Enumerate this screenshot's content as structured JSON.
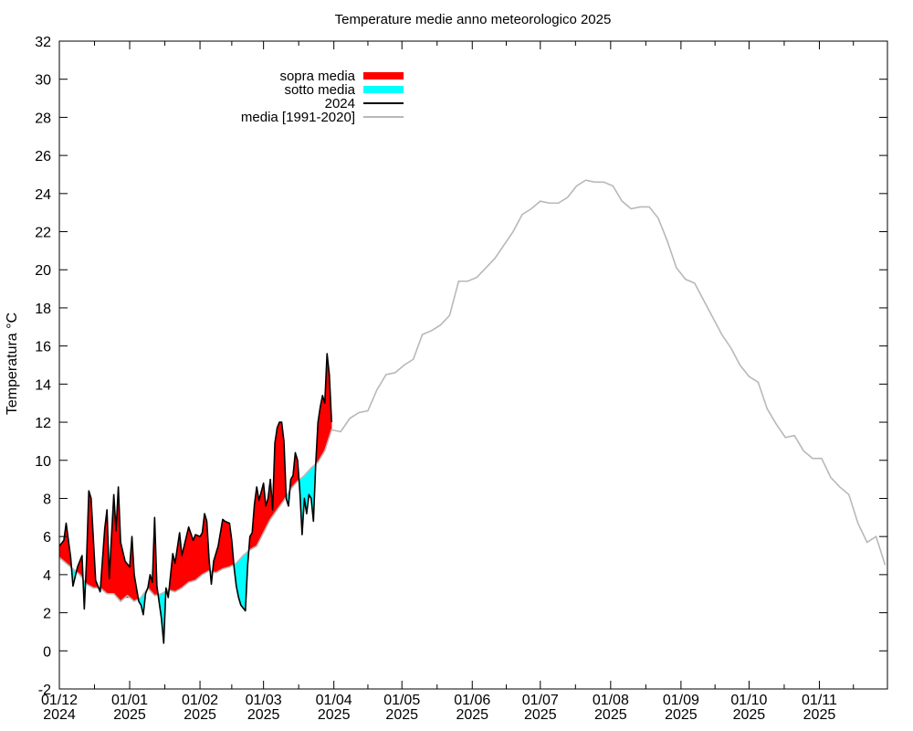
{
  "chart_data": {
    "type": "area",
    "title": "Temperature medie anno meteorologico 2025",
    "ylabel": "Temperatura °C",
    "xlabel": "",
    "ylim": [
      -2,
      32
    ],
    "yticks": [
      -2,
      0,
      2,
      4,
      6,
      8,
      10,
      12,
      14,
      16,
      18,
      20,
      22,
      24,
      26,
      28,
      30,
      32
    ],
    "xlim": [
      "2024-12-01",
      "2025-11-30"
    ],
    "xticks": [
      {
        "date": "2024-12-01",
        "line1": "01/12",
        "line2": "2024"
      },
      {
        "date": "2025-01-01",
        "line1": "01/01",
        "line2": "2025"
      },
      {
        "date": "2025-02-01",
        "line1": "01/02",
        "line2": "2025"
      },
      {
        "date": "2025-03-01",
        "line1": "01/03",
        "line2": "2025"
      },
      {
        "date": "2025-04-01",
        "line1": "01/04",
        "line2": "2025"
      },
      {
        "date": "2025-05-01",
        "line1": "01/05",
        "line2": "2025"
      },
      {
        "date": "2025-06-01",
        "line1": "01/06",
        "line2": "2025"
      },
      {
        "date": "2025-07-01",
        "line1": "01/07",
        "line2": "2025"
      },
      {
        "date": "2025-08-01",
        "line1": "01/08",
        "line2": "2025"
      },
      {
        "date": "2025-09-01",
        "line1": "01/09",
        "line2": "2025"
      },
      {
        "date": "2025-10-01",
        "line1": "01/10",
        "line2": "2025"
      },
      {
        "date": "2025-11-01",
        "line1": "01/11",
        "line2": "2025"
      }
    ],
    "legend_position": "top-left",
    "legend": [
      {
        "label": "sopra media",
        "color": "#ff0000",
        "kind": "fill"
      },
      {
        "label": "sotto media",
        "color": "#00ffff",
        "kind": "fill"
      },
      {
        "label": "2024",
        "color": "#000000",
        "kind": "line"
      },
      {
        "label": "media [1991-2020]",
        "color": "#b8b8b8",
        "kind": "line"
      }
    ],
    "colors": {
      "above": "#ff0000",
      "below": "#00ffff",
      "current": "#000000",
      "normal": "#b8b8b8"
    },
    "series": [
      {
        "name": "media [1991-2020]",
        "points": [
          [
            "2024-12-01",
            4.9
          ],
          [
            "2024-12-04",
            4.6
          ],
          [
            "2024-12-07",
            4.3
          ],
          [
            "2024-12-10",
            4.0
          ],
          [
            "2024-12-13",
            3.5
          ],
          [
            "2024-12-16",
            3.3
          ],
          [
            "2024-12-19",
            3.3
          ],
          [
            "2024-12-22",
            3.0
          ],
          [
            "2024-12-25",
            3.0
          ],
          [
            "2024-12-28",
            2.6
          ],
          [
            "2024-12-31",
            2.9
          ],
          [
            "2025-01-03",
            2.6
          ],
          [
            "2025-01-06",
            2.8
          ],
          [
            "2025-01-09",
            3.3
          ],
          [
            "2025-01-12",
            2.9
          ],
          [
            "2025-01-15",
            3.0
          ],
          [
            "2025-01-18",
            3.2
          ],
          [
            "2025-01-21",
            3.1
          ],
          [
            "2025-01-24",
            3.3
          ],
          [
            "2025-01-27",
            3.6
          ],
          [
            "2025-01-30",
            3.7
          ],
          [
            "2025-02-02",
            4.0
          ],
          [
            "2025-02-05",
            4.2
          ],
          [
            "2025-02-08",
            4.1
          ],
          [
            "2025-02-11",
            4.3
          ],
          [
            "2025-02-14",
            4.4
          ],
          [
            "2025-02-17",
            4.6
          ],
          [
            "2025-02-20",
            5.0
          ],
          [
            "2025-02-23",
            5.3
          ],
          [
            "2025-02-26",
            5.5
          ],
          [
            "2025-03-01",
            6.2
          ],
          [
            "2025-03-04",
            6.9
          ],
          [
            "2025-03-07",
            7.4
          ],
          [
            "2025-03-10",
            7.9
          ],
          [
            "2025-03-13",
            8.5
          ],
          [
            "2025-03-16",
            8.9
          ],
          [
            "2025-03-19",
            9.2
          ],
          [
            "2025-03-22",
            9.6
          ],
          [
            "2025-03-25",
            9.9
          ],
          [
            "2025-03-28",
            10.5
          ],
          [
            "2025-03-31",
            11.6
          ],
          [
            "2025-04-04",
            11.5
          ],
          [
            "2025-04-08",
            12.2
          ],
          [
            "2025-04-12",
            12.5
          ],
          [
            "2025-04-16",
            12.6
          ],
          [
            "2025-04-20",
            13.7
          ],
          [
            "2025-04-24",
            14.5
          ],
          [
            "2025-04-28",
            14.6
          ],
          [
            "2025-05-02",
            15.0
          ],
          [
            "2025-05-06",
            15.3
          ],
          [
            "2025-05-10",
            16.6
          ],
          [
            "2025-05-14",
            16.8
          ],
          [
            "2025-05-18",
            17.1
          ],
          [
            "2025-05-22",
            17.6
          ],
          [
            "2025-05-26",
            19.4
          ],
          [
            "2025-05-30",
            19.4
          ],
          [
            "2025-06-03",
            19.6
          ],
          [
            "2025-06-07",
            20.1
          ],
          [
            "2025-06-11",
            20.6
          ],
          [
            "2025-06-15",
            21.3
          ],
          [
            "2025-06-19",
            22.0
          ],
          [
            "2025-06-23",
            22.9
          ],
          [
            "2025-06-27",
            23.2
          ],
          [
            "2025-07-01",
            23.6
          ],
          [
            "2025-07-05",
            23.5
          ],
          [
            "2025-07-09",
            23.5
          ],
          [
            "2025-07-13",
            23.8
          ],
          [
            "2025-07-17",
            24.4
          ],
          [
            "2025-07-21",
            24.7
          ],
          [
            "2025-07-25",
            24.6
          ],
          [
            "2025-07-29",
            24.6
          ],
          [
            "2025-08-02",
            24.4
          ],
          [
            "2025-08-06",
            23.6
          ],
          [
            "2025-08-10",
            23.2
          ],
          [
            "2025-08-14",
            23.3
          ],
          [
            "2025-08-18",
            23.3
          ],
          [
            "2025-08-22",
            22.7
          ],
          [
            "2025-08-26",
            21.5
          ],
          [
            "2025-08-30",
            20.1
          ],
          [
            "2025-09-03",
            19.5
          ],
          [
            "2025-09-07",
            19.3
          ],
          [
            "2025-09-11",
            18.4
          ],
          [
            "2025-09-15",
            17.5
          ],
          [
            "2025-09-19",
            16.6
          ],
          [
            "2025-09-23",
            15.9
          ],
          [
            "2025-09-27",
            15.0
          ],
          [
            "2025-10-01",
            14.4
          ],
          [
            "2025-10-05",
            14.1
          ],
          [
            "2025-10-09",
            12.7
          ],
          [
            "2025-10-13",
            11.9
          ],
          [
            "2025-10-17",
            11.2
          ],
          [
            "2025-10-21",
            11.3
          ],
          [
            "2025-10-25",
            10.5
          ],
          [
            "2025-10-29",
            10.1
          ],
          [
            "2025-11-02",
            10.1
          ],
          [
            "2025-11-06",
            9.1
          ],
          [
            "2025-11-10",
            8.6
          ],
          [
            "2025-11-14",
            8.2
          ],
          [
            "2025-11-18",
            6.7
          ],
          [
            "2025-11-22",
            5.7
          ],
          [
            "2025-11-26",
            6.0
          ],
          [
            "2025-11-30",
            4.5
          ]
        ]
      },
      {
        "name": "2024",
        "points": [
          [
            "2024-12-01",
            5.5
          ],
          [
            "2024-12-03",
            5.8
          ],
          [
            "2024-12-04",
            6.7
          ],
          [
            "2024-12-06",
            4.9
          ],
          [
            "2024-12-07",
            3.4
          ],
          [
            "2024-12-09",
            4.4
          ],
          [
            "2024-12-11",
            5.0
          ],
          [
            "2024-12-12",
            2.2
          ],
          [
            "2024-12-13",
            4.8
          ],
          [
            "2024-12-14",
            8.4
          ],
          [
            "2024-12-15",
            8.0
          ],
          [
            "2024-12-17",
            3.7
          ],
          [
            "2024-12-19",
            3.1
          ],
          [
            "2024-12-21",
            6.4
          ],
          [
            "2024-12-22",
            7.4
          ],
          [
            "2024-12-23",
            3.8
          ],
          [
            "2024-12-25",
            8.2
          ],
          [
            "2024-12-26",
            6.3
          ],
          [
            "2024-12-27",
            8.6
          ],
          [
            "2024-12-28",
            5.7
          ],
          [
            "2024-12-30",
            4.7
          ],
          [
            "2025-01-01",
            4.4
          ],
          [
            "2025-01-02",
            6.0
          ],
          [
            "2025-01-03",
            4.0
          ],
          [
            "2025-01-05",
            2.6
          ],
          [
            "2025-01-06",
            2.4
          ],
          [
            "2025-01-07",
            1.9
          ],
          [
            "2025-01-08",
            3.0
          ],
          [
            "2025-01-09",
            3.3
          ],
          [
            "2025-01-10",
            4.0
          ],
          [
            "2025-01-11",
            3.6
          ],
          [
            "2025-01-12",
            7.0
          ],
          [
            "2025-01-13",
            3.4
          ],
          [
            "2025-01-15",
            1.7
          ],
          [
            "2025-01-16",
            0.4
          ],
          [
            "2025-01-17",
            3.3
          ],
          [
            "2025-01-18",
            2.8
          ],
          [
            "2025-01-20",
            5.1
          ],
          [
            "2025-01-21",
            4.6
          ],
          [
            "2025-01-23",
            6.2
          ],
          [
            "2025-01-24",
            5.0
          ],
          [
            "2025-01-25",
            5.5
          ],
          [
            "2025-01-27",
            6.5
          ],
          [
            "2025-01-29",
            5.8
          ],
          [
            "2025-01-30",
            6.1
          ],
          [
            "2025-02-01",
            6.0
          ],
          [
            "2025-02-02",
            6.2
          ],
          [
            "2025-02-03",
            7.2
          ],
          [
            "2025-02-04",
            6.8
          ],
          [
            "2025-02-05",
            4.8
          ],
          [
            "2025-02-06",
            3.5
          ],
          [
            "2025-02-07",
            4.7
          ],
          [
            "2025-02-09",
            5.5
          ],
          [
            "2025-02-11",
            6.9
          ],
          [
            "2025-02-12",
            6.8
          ],
          [
            "2025-02-14",
            6.7
          ],
          [
            "2025-02-15",
            5.8
          ],
          [
            "2025-02-16",
            4.4
          ],
          [
            "2025-02-17",
            3.4
          ],
          [
            "2025-02-18",
            2.8
          ],
          [
            "2025-02-19",
            2.4
          ],
          [
            "2025-02-21",
            2.1
          ],
          [
            "2025-02-22",
            4.5
          ],
          [
            "2025-02-23",
            6.0
          ],
          [
            "2025-02-24",
            6.2
          ],
          [
            "2025-02-25",
            7.7
          ],
          [
            "2025-02-26",
            8.6
          ],
          [
            "2025-02-27",
            7.9
          ],
          [
            "2025-03-01",
            8.8
          ],
          [
            "2025-03-02",
            7.6
          ],
          [
            "2025-03-03",
            8.0
          ],
          [
            "2025-03-04",
            9.0
          ],
          [
            "2025-03-05",
            7.4
          ],
          [
            "2025-03-06",
            10.9
          ],
          [
            "2025-03-07",
            11.7
          ],
          [
            "2025-03-08",
            12.0
          ],
          [
            "2025-03-09",
            12.0
          ],
          [
            "2025-03-10",
            11.0
          ],
          [
            "2025-03-11",
            8.0
          ],
          [
            "2025-03-12",
            7.6
          ],
          [
            "2025-03-13",
            9.0
          ],
          [
            "2025-03-14",
            9.2
          ],
          [
            "2025-03-15",
            10.4
          ],
          [
            "2025-03-16",
            10.0
          ],
          [
            "2025-03-17",
            8.4
          ],
          [
            "2025-03-18",
            6.1
          ],
          [
            "2025-03-19",
            8.0
          ],
          [
            "2025-03-20",
            7.2
          ],
          [
            "2025-03-21",
            8.2
          ],
          [
            "2025-03-22",
            8.0
          ],
          [
            "2025-03-23",
            6.8
          ],
          [
            "2025-03-24",
            9.8
          ],
          [
            "2025-03-25",
            12.0
          ],
          [
            "2025-03-26",
            12.8
          ],
          [
            "2025-03-27",
            13.4
          ],
          [
            "2025-03-28",
            13.0
          ],
          [
            "2025-03-29",
            15.6
          ],
          [
            "2025-03-30",
            14.5
          ],
          [
            "2025-03-31",
            12.0
          ]
        ]
      }
    ]
  }
}
